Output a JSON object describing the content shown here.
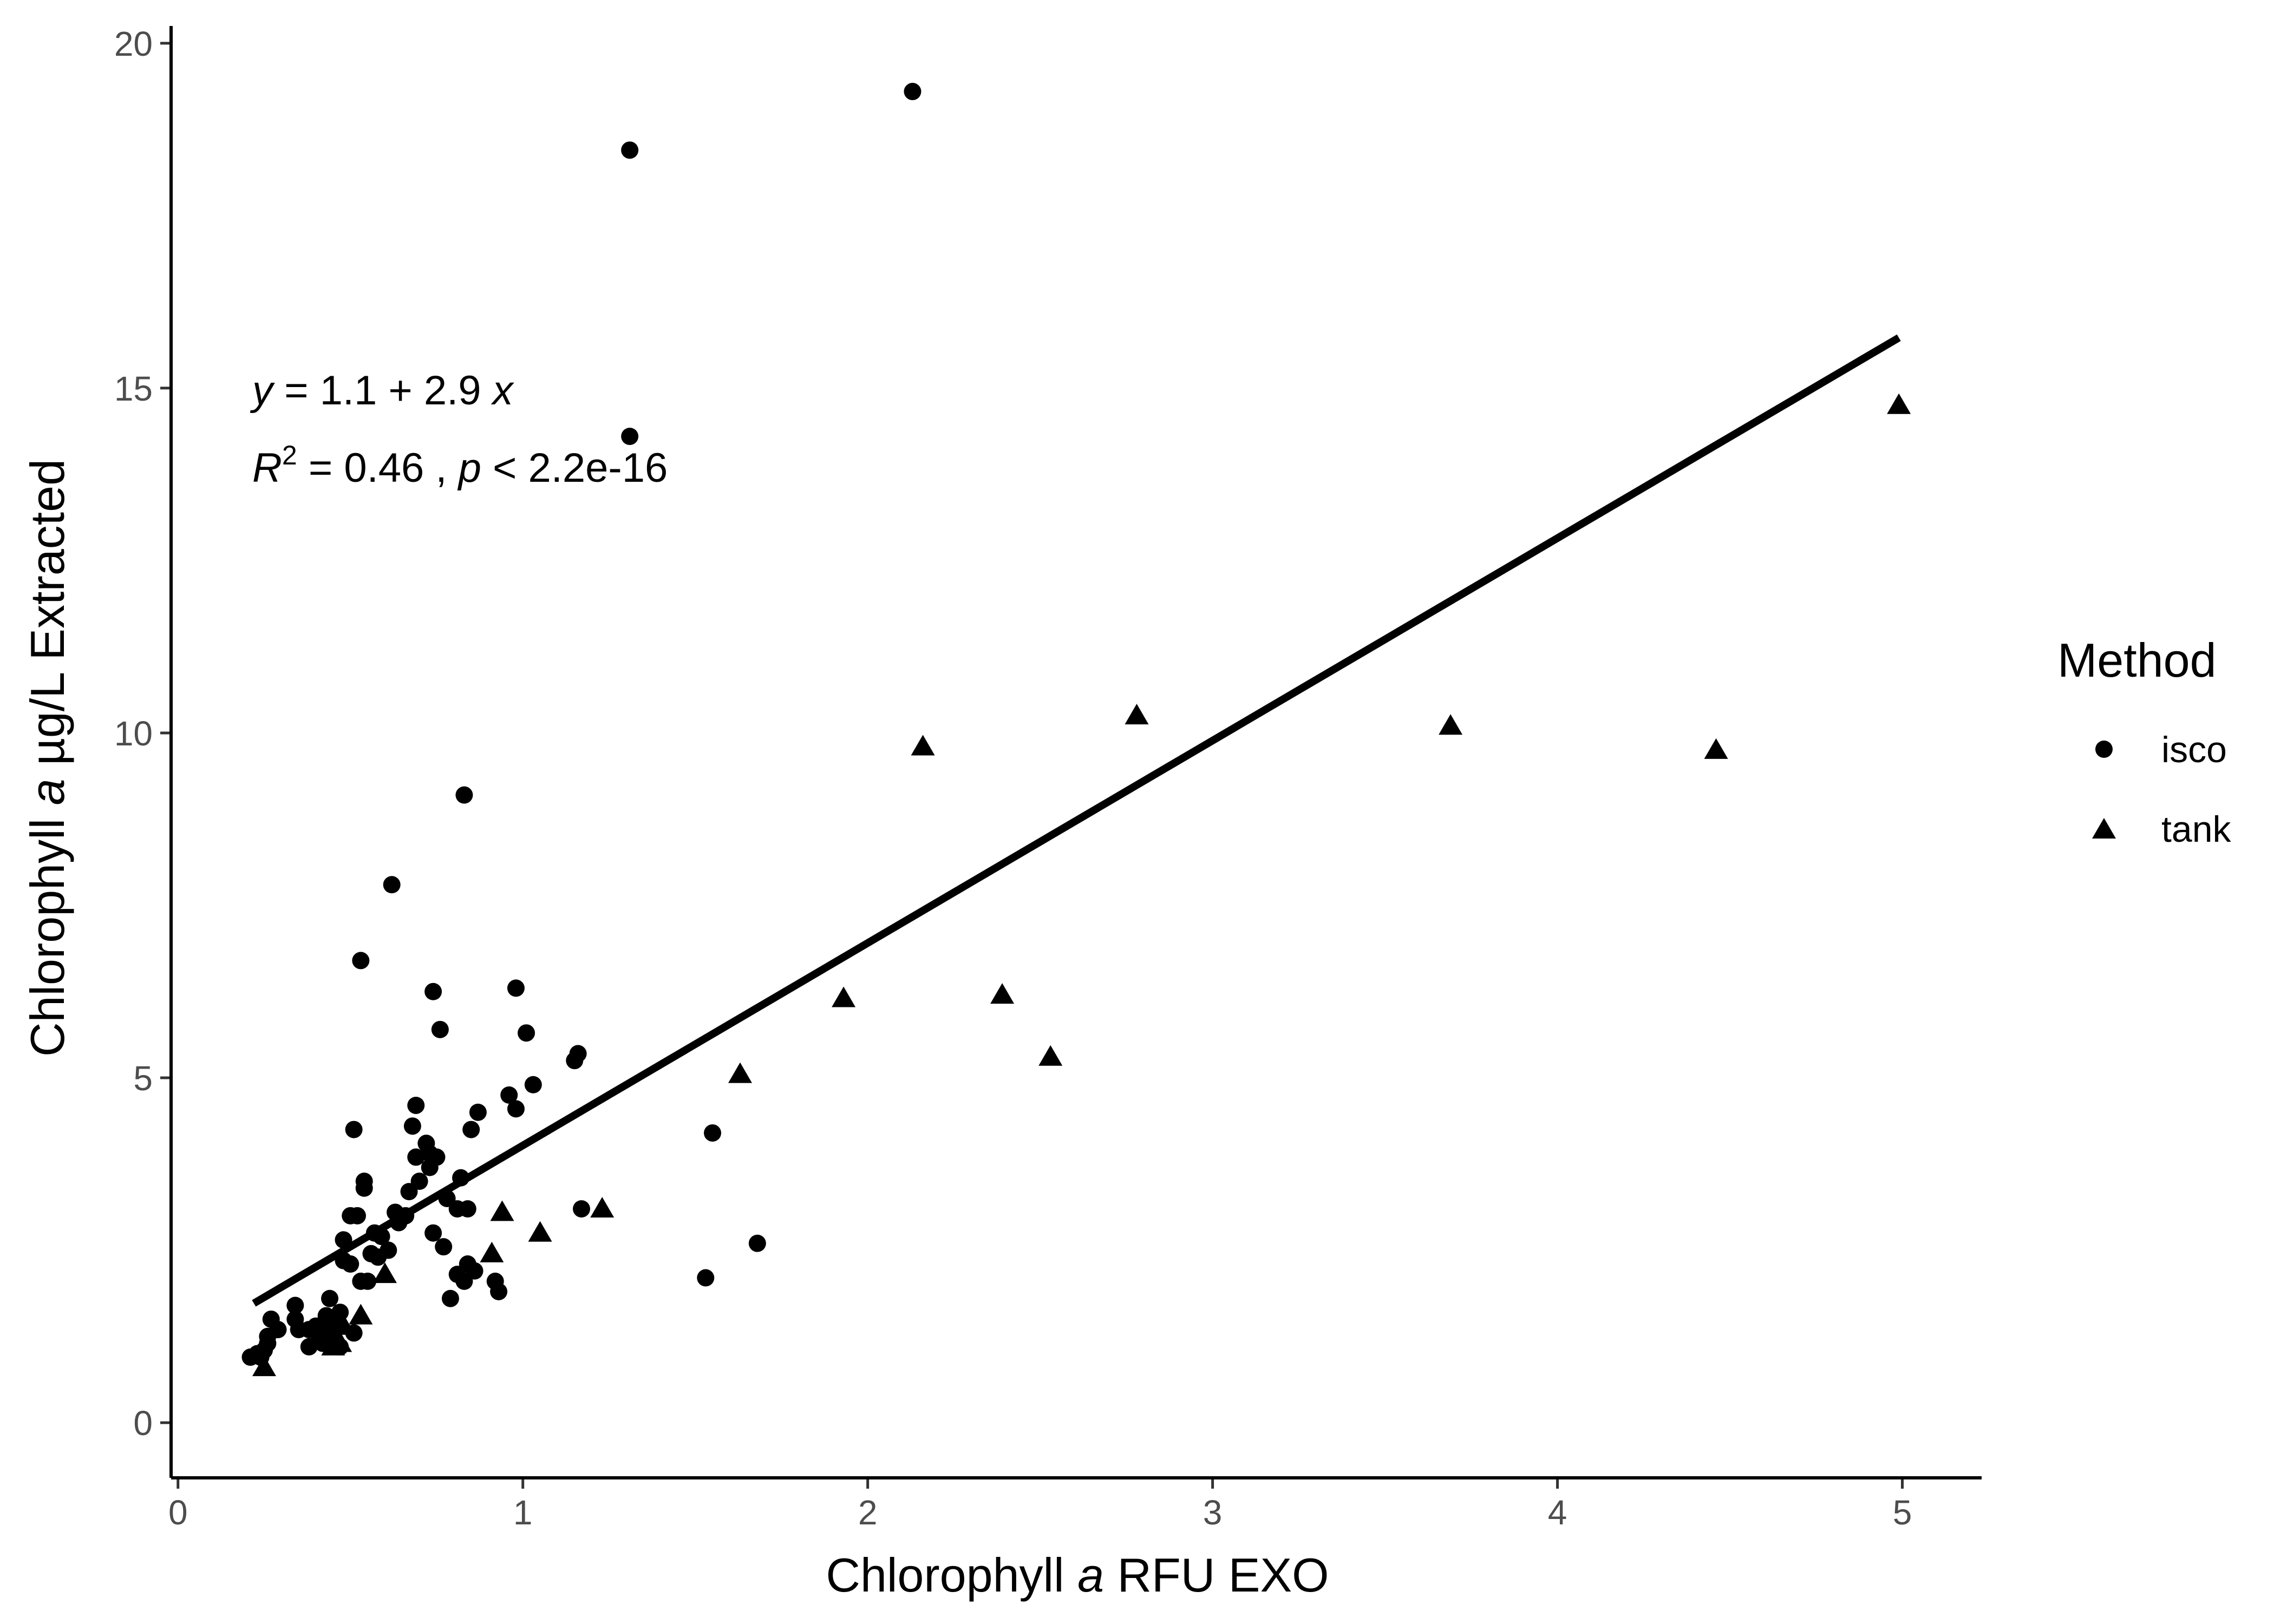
{
  "chart_data": {
    "type": "scatter",
    "xlabel": {
      "prefix": "Chlorophyll ",
      "italic": "a",
      "suffix": " RFU EXO"
    },
    "ylabel": {
      "prefix": "Chlorophyll ",
      "italic": "a",
      "suffix": " µg/L Extracted"
    },
    "xlim": [
      -0.02,
      5.23
    ],
    "ylim": [
      -0.8,
      20.25
    ],
    "x_ticks": [
      0,
      1,
      2,
      3,
      4,
      5
    ],
    "y_ticks": [
      0,
      5,
      10,
      15,
      20
    ],
    "grid": false,
    "legend": {
      "title": "Method",
      "position": "right",
      "entries": [
        {
          "label": "isco",
          "shape": "circle"
        },
        {
          "label": "tank",
          "shape": "triangle"
        }
      ]
    },
    "regression": {
      "intercept": 1.1,
      "slope": 2.9,
      "x_range": [
        0.22,
        4.99
      ],
      "y_range": [
        1.73,
        15.73
      ]
    },
    "annotation": {
      "eq_var": "y",
      "eq_rest": " = 1.1 + 2.9 ",
      "eq_x": "x",
      "r2_var": "R",
      "r2_sup": "2",
      "r2_rest": " = 0.46 ,  ",
      "p_var": "p",
      "p_rest": " < 2.2e-16"
    },
    "series": [
      {
        "name": "isco",
        "shape": "circle",
        "points": [
          [
            2.13,
            19.3
          ],
          [
            1.31,
            18.45
          ],
          [
            1.31,
            14.3
          ],
          [
            0.83,
            9.1
          ],
          [
            0.62,
            7.8
          ],
          [
            0.53,
            6.7
          ],
          [
            0.74,
            6.25
          ],
          [
            0.98,
            6.3
          ],
          [
            0.76,
            5.7
          ],
          [
            1.01,
            5.65
          ],
          [
            1.16,
            5.35
          ],
          [
            1.15,
            5.25
          ],
          [
            1.03,
            4.9
          ],
          [
            0.96,
            4.75
          ],
          [
            0.98,
            4.55
          ],
          [
            0.69,
            4.6
          ],
          [
            0.87,
            4.5
          ],
          [
            0.51,
            4.25
          ],
          [
            0.68,
            4.3
          ],
          [
            0.85,
            4.25
          ],
          [
            1.55,
            4.2
          ],
          [
            0.72,
            4.05
          ],
          [
            0.73,
            3.9
          ],
          [
            0.75,
            3.85
          ],
          [
            0.69,
            3.85
          ],
          [
            0.73,
            3.7
          ],
          [
            0.82,
            3.55
          ],
          [
            0.7,
            3.5
          ],
          [
            0.54,
            3.5
          ],
          [
            0.54,
            3.4
          ],
          [
            0.67,
            3.35
          ],
          [
            0.78,
            3.25
          ],
          [
            0.81,
            3.1
          ],
          [
            0.84,
            3.1
          ],
          [
            1.17,
            3.1
          ],
          [
            0.5,
            3.0
          ],
          [
            0.52,
            3.0
          ],
          [
            0.63,
            3.05
          ],
          [
            0.66,
            3.0
          ],
          [
            0.64,
            2.9
          ],
          [
            0.57,
            2.75
          ],
          [
            0.48,
            2.65
          ],
          [
            0.74,
            2.75
          ],
          [
            0.59,
            2.7
          ],
          [
            1.68,
            2.6
          ],
          [
            0.77,
            2.55
          ],
          [
            0.61,
            2.5
          ],
          [
            0.56,
            2.45
          ],
          [
            0.58,
            2.4
          ],
          [
            0.48,
            2.35
          ],
          [
            0.5,
            2.3
          ],
          [
            0.84,
            2.3
          ],
          [
            0.86,
            2.2
          ],
          [
            0.81,
            2.15
          ],
          [
            0.83,
            2.05
          ],
          [
            0.92,
            2.05
          ],
          [
            0.53,
            2.05
          ],
          [
            0.55,
            2.05
          ],
          [
            1.53,
            2.1
          ],
          [
            0.93,
            1.9
          ],
          [
            0.79,
            1.8
          ],
          [
            0.44,
            1.8
          ],
          [
            0.34,
            1.7
          ],
          [
            0.47,
            1.6
          ],
          [
            0.43,
            1.55
          ],
          [
            0.27,
            1.5
          ],
          [
            0.34,
            1.5
          ],
          [
            0.45,
            1.45
          ],
          [
            0.4,
            1.4
          ],
          [
            0.35,
            1.35
          ],
          [
            0.29,
            1.35
          ],
          [
            0.38,
            1.35
          ],
          [
            0.51,
            1.3
          ],
          [
            0.45,
            1.3
          ],
          [
            0.26,
            1.25
          ],
          [
            0.41,
            1.25
          ],
          [
            0.44,
            1.2
          ],
          [
            0.26,
            1.15
          ],
          [
            0.42,
            1.15
          ],
          [
            0.38,
            1.1
          ],
          [
            0.25,
            1.05
          ],
          [
            0.23,
            1.0
          ],
          [
            0.21,
            0.95
          ],
          [
            0.24,
            0.95
          ],
          [
            0.47,
            1.1
          ]
        ]
      },
      {
        "name": "tank",
        "shape": "triangle",
        "points": [
          [
            4.99,
            14.75
          ],
          [
            2.78,
            10.25
          ],
          [
            3.69,
            10.1
          ],
          [
            2.16,
            9.8
          ],
          [
            4.46,
            9.75
          ],
          [
            1.93,
            6.15
          ],
          [
            2.39,
            6.2
          ],
          [
            2.53,
            5.3
          ],
          [
            1.63,
            5.05
          ],
          [
            1.23,
            3.1
          ],
          [
            0.94,
            3.05
          ],
          [
            1.05,
            2.75
          ],
          [
            0.91,
            2.45
          ],
          [
            0.6,
            2.15
          ],
          [
            0.53,
            1.55
          ],
          [
            0.48,
            1.4
          ],
          [
            0.43,
            1.3
          ],
          [
            0.44,
            1.2
          ],
          [
            0.47,
            1.15
          ],
          [
            0.45,
            1.1
          ],
          [
            0.25,
            0.8
          ]
        ]
      }
    ]
  }
}
